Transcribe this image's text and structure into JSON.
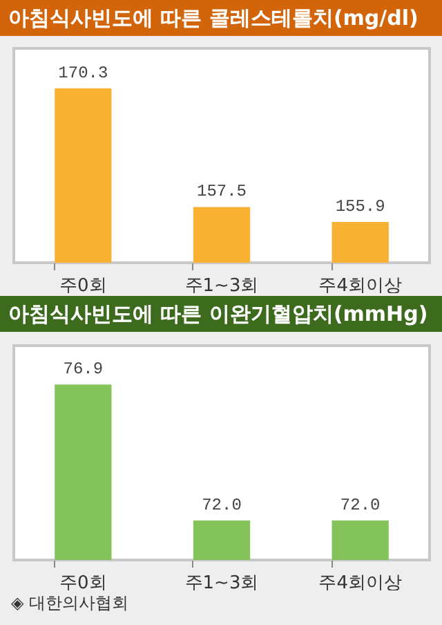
{
  "chart_data": [
    {
      "type": "bar",
      "title": "아침식사빈도에 따른 콜레스테롤치(mg/dl)",
      "categories": [
        "주0회",
        "주1~3회",
        "주4회이상"
      ],
      "values": [
        170.3,
        157.5,
        155.9
      ],
      "color": "#f8b133",
      "data_labels": true,
      "ylim": [
        151.5,
        174.6
      ],
      "tick_labels": "x"
    },
    {
      "type": "bar",
      "title": "아침식사빈도에 따른 이완기혈압치(mmHg)",
      "categories": [
        "주0회",
        "주1~3회",
        "주4회이상"
      ],
      "values": [
        76.9,
        72.0,
        72.0
      ],
      "color": "#84c35a",
      "value_labels": [
        "76.9",
        "72.0",
        "72.0"
      ],
      "ylim": [
        70.57,
        78.3
      ],
      "tick_labels": "x",
      "annotations": [
        "◈ 대한의사협회"
      ]
    }
  ]
}
